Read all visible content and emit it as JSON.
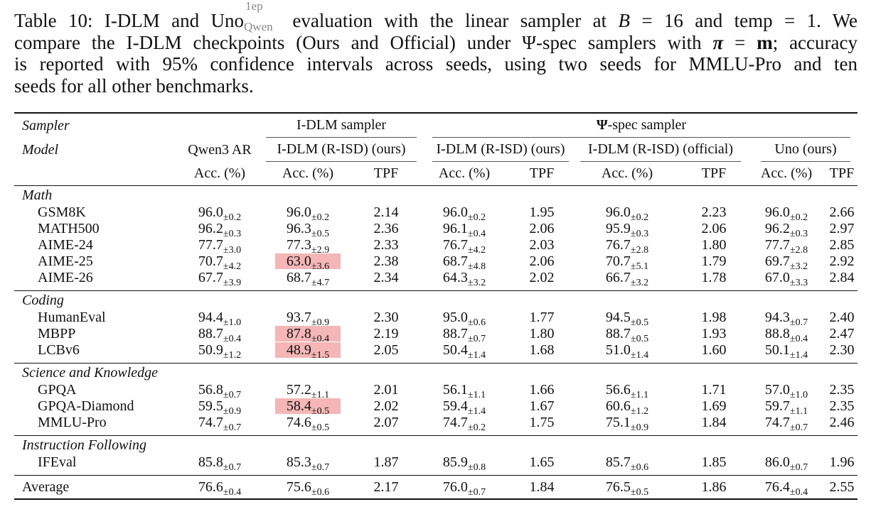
{
  "caption": {
    "label": "Table 10:",
    "pre_uno": "I-DLM and Uno",
    "uno_super": "1ep",
    "uno_sub": "Qwen",
    "post_uno": " evaluation with the linear sampler at",
    "b_var": "B",
    "b_val": " = 16 and temp = 1.  We",
    "line2_a": "compare the I-DLM checkpoints (Ours and Official) under Ψ-spec samplers with ",
    "pi": "π",
    "line2_b": " = ",
    "m": "m",
    "line2_c": "; accuracy",
    "line3": "is reported with 95% confidence intervals across seeds, using two seeds for MMLU-Pro and ten",
    "line4": "seeds for all other benchmarks."
  },
  "header": {
    "sampler_label": "Sampler",
    "model_label": "Model",
    "idlm_sampler": "I-DLM sampler",
    "psi_sampler_psi": "Ψ",
    "psi_sampler_rest": "-spec sampler",
    "qwen_ar": "Qwen3 AR",
    "idlm_rist_ours": "I-DLM (R-ISD) (ours)",
    "idlm_rist_official": "I-DLM (R-ISD) (official)",
    "uno_ours": "Uno (ours)",
    "acc": "Acc. (%)",
    "tpf": "TPF"
  },
  "sections": [
    {
      "name": "Math",
      "rows": [
        {
          "bench": "GSM8K",
          "q": [
            "96.0",
            "±0.2"
          ],
          "i": [
            "96.0",
            "±0.2"
          ],
          "i_tpf": "2.14",
          "po": [
            "96.0",
            "±0.2"
          ],
          "po_tpf": "1.95",
          "pf": [
            "96.0",
            "±0.2"
          ],
          "pf_tpf": "2.23",
          "u": [
            "96.0",
            "±0.2"
          ],
          "u_tpf": "2.66"
        },
        {
          "bench": "MATH500",
          "q": [
            "96.2",
            "±0.3"
          ],
          "i": [
            "96.3",
            "±0.5"
          ],
          "i_tpf": "2.36",
          "po": [
            "96.1",
            "±0.4"
          ],
          "po_tpf": "2.06",
          "pf": [
            "95.9",
            "±0.3"
          ],
          "pf_tpf": "2.06",
          "u": [
            "96.2",
            "±0.3"
          ],
          "u_tpf": "2.97"
        },
        {
          "bench": "AIME-24",
          "q": [
            "77.7",
            "±3.0"
          ],
          "i": [
            "77.3",
            "±2.9"
          ],
          "i_tpf": "2.33",
          "po": [
            "76.7",
            "±4.2"
          ],
          "po_tpf": "2.03",
          "pf": [
            "76.7",
            "±2.8"
          ],
          "pf_tpf": "1.80",
          "u": [
            "77.7",
            "±2.8"
          ],
          "u_tpf": "2.85"
        },
        {
          "bench": "AIME-25",
          "q": [
            "70.7",
            "±4.2"
          ],
          "i": [
            "63.0",
            "±3.6"
          ],
          "i_hl": true,
          "i_tpf": "2.38",
          "po": [
            "68.7",
            "±4.8"
          ],
          "po_tpf": "2.06",
          "pf": [
            "70.7",
            "±5.1"
          ],
          "pf_tpf": "1.79",
          "u": [
            "69.7",
            "±3.2"
          ],
          "u_tpf": "2.92"
        },
        {
          "bench": "AIME-26",
          "q": [
            "67.7",
            "±3.9"
          ],
          "i": [
            "68.7",
            "±4.7"
          ],
          "i_tpf": "2.34",
          "po": [
            "64.3",
            "±3.2"
          ],
          "po_tpf": "2.02",
          "pf": [
            "66.7",
            "±3.2"
          ],
          "pf_tpf": "1.78",
          "u": [
            "67.0",
            "±3.3"
          ],
          "u_tpf": "2.84"
        }
      ]
    },
    {
      "name": "Coding",
      "rows": [
        {
          "bench": "HumanEval",
          "q": [
            "94.4",
            "±1.0"
          ],
          "i": [
            "93.7",
            "±0.9"
          ],
          "i_tpf": "2.30",
          "po": [
            "95.0",
            "±0.6"
          ],
          "po_tpf": "1.77",
          "pf": [
            "94.5",
            "±0.5"
          ],
          "pf_tpf": "1.98",
          "u": [
            "94.3",
            "±0.7"
          ],
          "u_tpf": "2.40"
        },
        {
          "bench": "MBPP",
          "q": [
            "88.7",
            "±0.4"
          ],
          "i": [
            "87.8",
            "±0.4"
          ],
          "i_hl": true,
          "i_tpf": "2.19",
          "po": [
            "88.7",
            "±0.7"
          ],
          "po_tpf": "1.80",
          "pf": [
            "88.7",
            "±0.5"
          ],
          "pf_tpf": "1.93",
          "u": [
            "88.8",
            "±0.4"
          ],
          "u_tpf": "2.47"
        },
        {
          "bench": "LCBv6",
          "q": [
            "50.9",
            "±1.2"
          ],
          "i": [
            "48.9",
            "±1.5"
          ],
          "i_hl": true,
          "i_tpf": "2.05",
          "po": [
            "50.4",
            "±1.4"
          ],
          "po_tpf": "1.68",
          "pf": [
            "51.0",
            "±1.4"
          ],
          "pf_tpf": "1.60",
          "u": [
            "50.1",
            "±1.4"
          ],
          "u_tpf": "2.30"
        }
      ]
    },
    {
      "name": "Science and Knowledge",
      "rows": [
        {
          "bench": "GPQA",
          "q": [
            "56.8",
            "±0.7"
          ],
          "i": [
            "57.2",
            "±1.1"
          ],
          "i_tpf": "2.01",
          "po": [
            "56.1",
            "±1.1"
          ],
          "po_tpf": "1.66",
          "pf": [
            "56.6",
            "±1.1"
          ],
          "pf_tpf": "1.71",
          "u": [
            "57.0",
            "±1.0"
          ],
          "u_tpf": "2.35"
        },
        {
          "bench": "GPQA-Diamond",
          "q": [
            "59.5",
            "±0.9"
          ],
          "i": [
            "58.4",
            "±0.5"
          ],
          "i_hl": true,
          "i_tpf": "2.02",
          "po": [
            "59.4",
            "±1.4"
          ],
          "po_tpf": "1.67",
          "pf": [
            "60.6",
            "±1.2"
          ],
          "pf_tpf": "1.69",
          "u": [
            "59.7",
            "±1.1"
          ],
          "u_tpf": "2.35"
        },
        {
          "bench": "MMLU-Pro",
          "q": [
            "74.7",
            "±0.7"
          ],
          "i": [
            "74.6",
            "±0.5"
          ],
          "i_tpf": "2.07",
          "po": [
            "74.7",
            "±0.2"
          ],
          "po_tpf": "1.75",
          "pf": [
            "75.1",
            "±0.9"
          ],
          "pf_tpf": "1.84",
          "u": [
            "74.7",
            "±0.7"
          ],
          "u_tpf": "2.46"
        }
      ]
    },
    {
      "name": "Instruction Following",
      "rows": [
        {
          "bench": "IFEval",
          "q": [
            "85.8",
            "±0.7"
          ],
          "i": [
            "85.3",
            "±0.7"
          ],
          "i_tpf": "1.87",
          "po": [
            "85.9",
            "±0.8"
          ],
          "po_tpf": "1.65",
          "pf": [
            "85.7",
            "±0.6"
          ],
          "pf_tpf": "1.85",
          "u": [
            "86.0",
            "±0.7"
          ],
          "u_tpf": "1.96"
        }
      ]
    }
  ],
  "average": {
    "bench": "Average",
    "q": [
      "76.6",
      "±0.4"
    ],
    "i": [
      "75.6",
      "±0.6"
    ],
    "i_tpf": "2.17",
    "po": [
      "76.0",
      "±0.7"
    ],
    "po_tpf": "1.84",
    "pf": [
      "76.5",
      "±0.5"
    ],
    "pf_tpf": "1.86",
    "u": [
      "76.4",
      "±0.4"
    ],
    "u_tpf": "2.55"
  },
  "colors": {
    "highlight": "#f4b6b6",
    "caption_super": "#888888"
  }
}
